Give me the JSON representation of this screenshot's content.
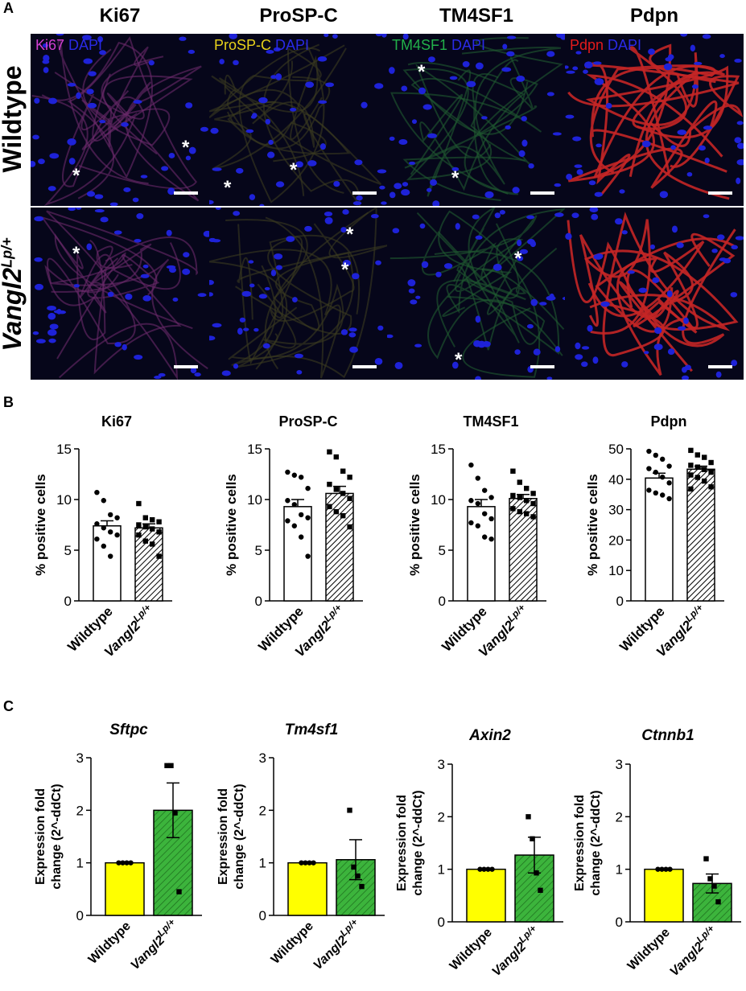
{
  "panel_letters": {
    "a": "A",
    "b": "B",
    "c": "C"
  },
  "panel_a": {
    "columns": [
      "Ki67",
      "ProSP-C",
      "TM4SF1",
      "Pdpn"
    ],
    "rows": [
      {
        "label": "Wildtype"
      },
      {
        "label_main": "Vangl2",
        "label_sup": "Lp/+"
      }
    ],
    "stain_labels": [
      {
        "marker": "Ki67",
        "marker_color": "#d23fd2",
        "counter": "DAPI",
        "counter_color": "#2a2ae6"
      },
      {
        "marker": "ProSP-C",
        "marker_color": "#e8d21a",
        "counter": "DAPI",
        "counter_color": "#2a2ae6"
      },
      {
        "marker": "TM4SF1",
        "marker_color": "#22b04a",
        "counter": "DAPI",
        "counter_color": "#2a2ae6"
      },
      {
        "marker": "Pdpn",
        "marker_color": "#e51b1b",
        "counter": "DAPI",
        "counter_color": "#2a2ae6"
      }
    ],
    "asterisk": "*"
  },
  "chart_data": [
    {
      "panel": "B",
      "type": "bar",
      "title": "Ki67",
      "ylabel": "% positive cells",
      "ylim": [
        0,
        15
      ],
      "yticks": [
        0,
        5,
        10,
        15
      ],
      "categories": [
        "Wildtype",
        "Vangl2Lp/+"
      ],
      "series": [
        {
          "values": [
            7.4,
            7.2
          ],
          "sem": [
            0.5,
            0.4
          ]
        }
      ],
      "points": [
        [
          10.7,
          9.9,
          8.5,
          8.2,
          7.6,
          7.2,
          6.8,
          6.5,
          6.1,
          5.4,
          4.4
        ],
        [
          9.6,
          8.2,
          8.0,
          7.8,
          7.5,
          7.3,
          7.1,
          6.8,
          6.5,
          5.9,
          5.6,
          4.4
        ]
      ]
    },
    {
      "panel": "B",
      "type": "bar",
      "title": "ProSP-C",
      "ylabel": "% positive cells",
      "ylim": [
        0,
        15
      ],
      "yticks": [
        0,
        5,
        10,
        15
      ],
      "categories": [
        "Wildtype",
        "Vangl2Lp/+"
      ],
      "series": [
        {
          "values": [
            9.3,
            10.6
          ],
          "sem": [
            0.7,
            0.7
          ]
        }
      ],
      "points": [
        [
          12.7,
          12.4,
          12.2,
          11.1,
          9.9,
          9.5,
          8.5,
          8.2,
          7.9,
          7.4,
          6.3,
          4.4
        ],
        [
          14.7,
          14.2,
          12.8,
          12.2,
          11.5,
          11.0,
          10.6,
          10.1,
          9.3,
          8.8,
          8.4,
          7.3
        ]
      ]
    },
    {
      "panel": "B",
      "type": "bar",
      "title": "TM4SF1",
      "ylabel": "% positive cells",
      "ylim": [
        0,
        15
      ],
      "yticks": [
        0,
        5,
        10,
        15
      ],
      "categories": [
        "Wildtype",
        "Vangl2Lp/+"
      ],
      "series": [
        {
          "values": [
            9.3,
            10.1
          ],
          "sem": [
            0.7,
            0.4
          ]
        }
      ],
      "points": [
        [
          13.4,
          12.1,
          10.9,
          10.2,
          9.9,
          9.6,
          8.6,
          8.1,
          7.7,
          7.4,
          6.3,
          6.1
        ],
        [
          12.8,
          11.7,
          11.1,
          10.6,
          10.4,
          10.2,
          9.9,
          9.6,
          9.1,
          8.8,
          8.6,
          8.3
        ]
      ]
    },
    {
      "panel": "B",
      "type": "bar",
      "title": "Pdpn",
      "ylabel": "% positive cells",
      "ylim": [
        0,
        50
      ],
      "yticks": [
        0,
        10,
        20,
        30,
        40,
        50
      ],
      "categories": [
        "Wildtype",
        "Vangl2Lp/+"
      ],
      "series": [
        {
          "values": [
            40.4,
            43.3
          ],
          "sem": [
            1.6,
            1.0
          ]
        }
      ],
      "points": [
        [
          49.2,
          47.9,
          46.6,
          44.3,
          43.5,
          42.3,
          40.7,
          38.8,
          36.4,
          35.5,
          34.8,
          33.6
        ],
        [
          49.5,
          48.0,
          47.2,
          45.5,
          44.6,
          44.0,
          43.2,
          42.3,
          41.4,
          40.6,
          39.4,
          37.5,
          36.8
        ]
      ]
    },
    {
      "panel": "C",
      "type": "bar",
      "title": "Sftpc",
      "ylabel_lines": [
        "Expression fold",
        "change (2^-ddCt)"
      ],
      "ylim": [
        0,
        3
      ],
      "yticks": [
        0,
        1,
        2,
        3
      ],
      "categories": [
        "Wildtype",
        "Vangl2Lp/+"
      ],
      "series": [
        {
          "values": [
            1.0,
            2.0
          ],
          "sem": [
            0.0,
            0.52
          ]
        }
      ],
      "points": [
        [
          1.0,
          1.0,
          1.0,
          1.0
        ],
        [
          2.85,
          2.85,
          1.95,
          0.45
        ]
      ]
    },
    {
      "panel": "C",
      "type": "bar",
      "title": "Tm4sf1",
      "ylabel_lines": [
        "Expression fold",
        "change (2^-ddCt)"
      ],
      "ylim": [
        0,
        3
      ],
      "yticks": [
        0,
        1,
        2,
        3
      ],
      "categories": [
        "Wildtype",
        "Vangl2Lp/+"
      ],
      "series": [
        {
          "values": [
            1.0,
            1.06
          ],
          "sem": [
            0.0,
            0.38
          ]
        }
      ],
      "points": [
        [
          1.0,
          1.0,
          1.0,
          1.0
        ],
        [
          2.0,
          0.92,
          0.75,
          0.55
        ]
      ]
    },
    {
      "panel": "C",
      "type": "bar",
      "title": "Axin2",
      "ylabel_lines": [
        "Expression fold",
        "change (2^-ddCt)"
      ],
      "ylim": [
        0,
        3
      ],
      "yticks": [
        0,
        1,
        2,
        3
      ],
      "categories": [
        "Wildtype",
        "Vangl2Lp/+"
      ],
      "series": [
        {
          "values": [
            1.0,
            1.27
          ],
          "sem": [
            0.0,
            0.34
          ]
        }
      ],
      "points": [
        [
          1.0,
          1.0,
          1.0,
          1.0
        ],
        [
          2.0,
          1.58,
          0.93,
          0.6
        ]
      ]
    },
    {
      "panel": "C",
      "type": "bar",
      "title": "Ctnnb1",
      "ylabel_lines": [
        "Expression fold",
        "change (2^-ddCt)"
      ],
      "ylim": [
        0,
        3
      ],
      "yticks": [
        0,
        1,
        2,
        3
      ],
      "categories": [
        "Wildtype",
        "Vangl2Lp/+"
      ],
      "series": [
        {
          "values": [
            1.0,
            0.73
          ],
          "sem": [
            0.0,
            0.18
          ]
        }
      ],
      "points": [
        [
          1.0,
          1.0,
          1.0,
          1.0
        ],
        [
          1.2,
          0.82,
          0.68,
          0.38
        ]
      ]
    }
  ],
  "styles": {
    "wildtype_fill_b": "#ffffff",
    "mutant_fill_b": "hatched-black",
    "wildtype_fill_c": "#ffff00",
    "mutant_fill_c": "#3cb43c"
  }
}
